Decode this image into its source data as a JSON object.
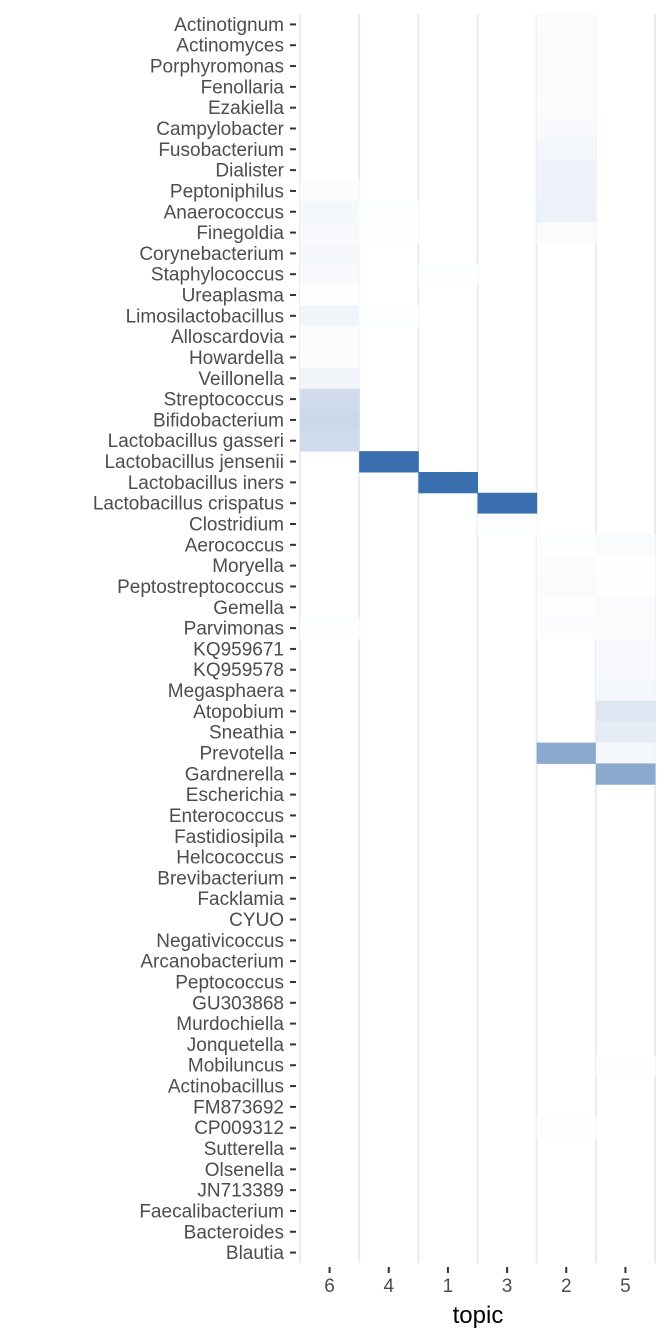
{
  "chart_data": {
    "type": "heatmap",
    "title": "",
    "xlabel": "topic",
    "ylabel": "",
    "grid": true,
    "legend": "none",
    "colors": {
      "low": "#ffffff",
      "high": "#3a6faf",
      "panel": "#ffffff",
      "grid": "#ebebeb",
      "tick": "#333333"
    },
    "x_categories": [
      "6",
      "4",
      "1",
      "3",
      "2",
      "5"
    ],
    "y_categories": [
      "Actinotignum",
      "Actinomyces",
      "Porphyromonas",
      "Fenollaria",
      "Ezakiella",
      "Campylobacter",
      "Fusobacterium",
      "Dialister",
      "Peptoniphilus",
      "Anaerococcus",
      "Finegoldia",
      "Corynebacterium",
      "Staphylococcus",
      "Ureaplasma",
      "Limosilactobacillus",
      "Alloscardovia",
      "Howardella",
      "Veillonella",
      "Streptococcus",
      "Bifidobacterium",
      "Lactobacillus gasseri",
      "Lactobacillus jensenii",
      "Lactobacillus iners",
      "Lactobacillus crispatus",
      "Clostridium",
      "Aerococcus",
      "Moryella",
      "Peptostreptococcus",
      "Gemella",
      "Parvimonas",
      "KQ959671",
      "KQ959578",
      "Megasphaera",
      "Atopobium",
      "Sneathia",
      "Prevotella",
      "Gardnerella",
      "Escherichia",
      "Enterococcus",
      "Fastidiosipila",
      "Helcococcus",
      "Brevibacterium",
      "Facklamia",
      "CYUO",
      "Negativicoccus",
      "Arcanobacterium",
      "Peptococcus",
      "GU303868",
      "Murdochiella",
      "Jonquetella",
      "Mobiluncus",
      "Actinobacillus",
      "FM873692",
      "CP009312",
      "Sutterella",
      "Olsenella",
      "JN713389",
      "Faecalibacterium",
      "Bacteroides",
      "Blautia"
    ],
    "values": [
      [
        0,
        0,
        0,
        0,
        0.02,
        0
      ],
      [
        0,
        0,
        0,
        0,
        0.03,
        0
      ],
      [
        0,
        0,
        0,
        0,
        0.03,
        0
      ],
      [
        0,
        0,
        0,
        0,
        0.03,
        0
      ],
      [
        0,
        0,
        0,
        0,
        0.02,
        0
      ],
      [
        0,
        0,
        0,
        0,
        0.04,
        0
      ],
      [
        0,
        0,
        0,
        0,
        0.06,
        0
      ],
      [
        0,
        0,
        0,
        0,
        0.08,
        0
      ],
      [
        0.03,
        0,
        0,
        0,
        0.08,
        0
      ],
      [
        0.05,
        0.01,
        0,
        0,
        0.09,
        0
      ],
      [
        0.04,
        0.01,
        0,
        0,
        0.03,
        0
      ],
      [
        0.05,
        0,
        0,
        0,
        0,
        0
      ],
      [
        0.04,
        0,
        0.01,
        0,
        0,
        0
      ],
      [
        0.01,
        0,
        0,
        0,
        0,
        0
      ],
      [
        0.07,
        0.01,
        0,
        0,
        0,
        0
      ],
      [
        0.03,
        0,
        0,
        0,
        0,
        0
      ],
      [
        0.02,
        0,
        0,
        0,
        0,
        0
      ],
      [
        0.07,
        0,
        0,
        0,
        0,
        0
      ],
      [
        0.24,
        0,
        0,
        0,
        0,
        0
      ],
      [
        0.27,
        0,
        0,
        0,
        0,
        0
      ],
      [
        0.24,
        0,
        0,
        0,
        0,
        0
      ],
      [
        0,
        1,
        0,
        0,
        0,
        0
      ],
      [
        0,
        0,
        1,
        0,
        0,
        0
      ],
      [
        0,
        0,
        0,
        1,
        0,
        0
      ],
      [
        0,
        0,
        0,
        0.01,
        0,
        0
      ],
      [
        0,
        0,
        0,
        0,
        0.01,
        0.03
      ],
      [
        0,
        0,
        0,
        0,
        0.02,
        0.01
      ],
      [
        0,
        0,
        0,
        0,
        0.03,
        0.01
      ],
      [
        0,
        0,
        0,
        0,
        0.01,
        0.03
      ],
      [
        0.01,
        0,
        0,
        0,
        0.02,
        0.03
      ],
      [
        0,
        0,
        0,
        0,
        0,
        0.04
      ],
      [
        0,
        0,
        0,
        0,
        0,
        0.04
      ],
      [
        0,
        0,
        0,
        0,
        0,
        0.05
      ],
      [
        0,
        0,
        0,
        0,
        0,
        0.17
      ],
      [
        0,
        0,
        0,
        0,
        0,
        0.13
      ],
      [
        0,
        0,
        0,
        0,
        0.6,
        0.05
      ],
      [
        0,
        0,
        0,
        0,
        0,
        0.6
      ],
      [
        0,
        0,
        0,
        0,
        0,
        0
      ],
      [
        0,
        0,
        0,
        0,
        0,
        0
      ],
      [
        0,
        0,
        0,
        0,
        0,
        0
      ],
      [
        0,
        0,
        0,
        0,
        0,
        0
      ],
      [
        0,
        0,
        0,
        0,
        0,
        0
      ],
      [
        0,
        0,
        0,
        0,
        0,
        0
      ],
      [
        0,
        0,
        0,
        0,
        0,
        0
      ],
      [
        0,
        0,
        0,
        0,
        0,
        0
      ],
      [
        0,
        0,
        0,
        0,
        0,
        0
      ],
      [
        0,
        0,
        0,
        0,
        0,
        0
      ],
      [
        0,
        0,
        0,
        0,
        0,
        0
      ],
      [
        0,
        0,
        0,
        0,
        0,
        0
      ],
      [
        0,
        0,
        0,
        0,
        0,
        0
      ],
      [
        0,
        0,
        0,
        0,
        0,
        0.01
      ],
      [
        0,
        0,
        0,
        0,
        0,
        0
      ],
      [
        0,
        0,
        0,
        0,
        0,
        0
      ],
      [
        0,
        0,
        0,
        0,
        0.01,
        0
      ],
      [
        0,
        0,
        0,
        0,
        0,
        0
      ],
      [
        0,
        0,
        0,
        0,
        0,
        0
      ],
      [
        0,
        0,
        0,
        0,
        0,
        0
      ],
      [
        0,
        0,
        0,
        0,
        0,
        0
      ],
      [
        0,
        0,
        0,
        0,
        0,
        0
      ],
      [
        0,
        0,
        0,
        0,
        0,
        0
      ]
    ]
  }
}
